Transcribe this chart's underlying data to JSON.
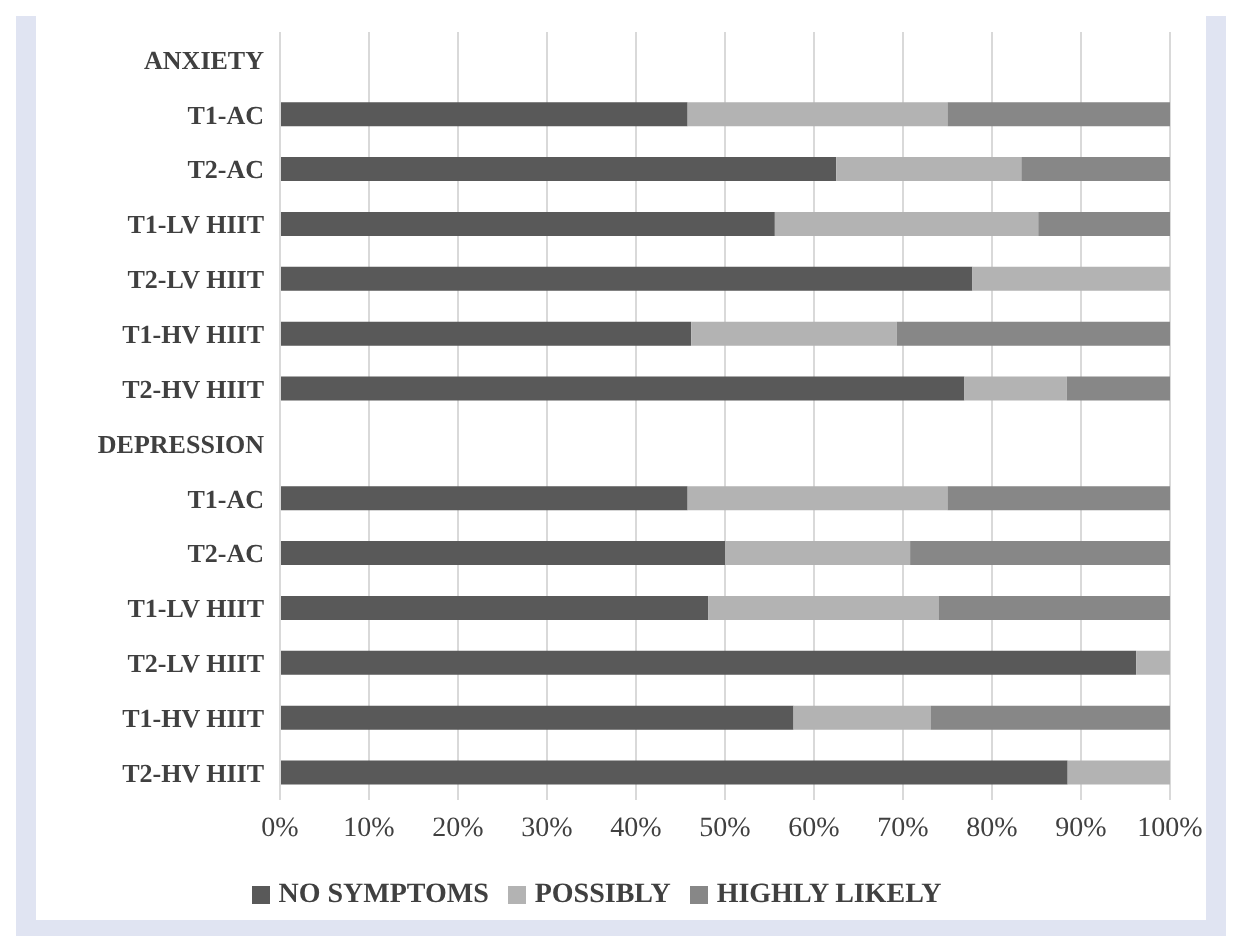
{
  "chart_data": {
    "type": "bar",
    "orientation": "horizontal",
    "stacked": true,
    "categories": [
      "ANXIETY",
      "T1-AC",
      "T2-AC",
      "T1-LV HIIT",
      "T2-LV HIIT",
      "T1-HV HIIT",
      "T2-HV HIIT",
      "DEPRESSION",
      "T1-AC",
      "T2-AC",
      "T1-LV HIIT",
      "T2-LV HIIT",
      "T1-HV HIIT",
      "T2-HV HIIT"
    ],
    "series": [
      {
        "name": "NO SYMPTOMS",
        "color": "#595959",
        "values": [
          null,
          45.8,
          62.5,
          55.6,
          77.8,
          46.2,
          76.9,
          null,
          45.8,
          50.0,
          48.1,
          96.2,
          57.7,
          88.5
        ]
      },
      {
        "name": "POSSIBLY",
        "color": "#b3b3b3",
        "values": [
          null,
          29.2,
          20.8,
          29.6,
          22.2,
          23.1,
          11.5,
          null,
          29.2,
          20.8,
          25.9,
          3.8,
          15.4,
          11.5
        ]
      },
      {
        "name": "HIGHLY LIKELY",
        "color": "#878787",
        "values": [
          null,
          25.0,
          16.7,
          14.8,
          null,
          30.7,
          11.6,
          null,
          25.0,
          29.2,
          26.0,
          null,
          26.9,
          null
        ]
      }
    ],
    "xlim": [
      0,
      100
    ],
    "xticks": [
      {
        "value": 0,
        "label": "0%"
      },
      {
        "value": 10,
        "label": "10%"
      },
      {
        "value": 20,
        "label": "20%"
      },
      {
        "value": 30,
        "label": "30%"
      },
      {
        "value": 40,
        "label": "40%"
      },
      {
        "value": 50,
        "label": "50%"
      },
      {
        "value": 60,
        "label": "60%"
      },
      {
        "value": 70,
        "label": "70%"
      },
      {
        "value": 80,
        "label": "80%"
      },
      {
        "value": 90,
        "label": "90%"
      },
      {
        "value": 100,
        "label": "100%"
      }
    ],
    "grid": "x",
    "legend": "bottom"
  }
}
